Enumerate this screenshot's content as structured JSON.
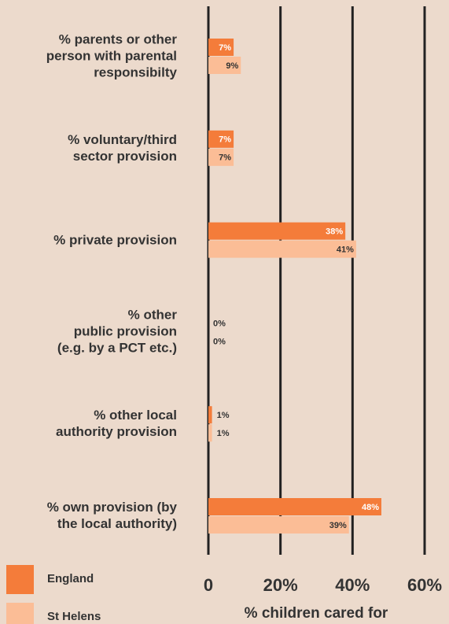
{
  "chart_data": {
    "type": "bar",
    "orientation": "horizontal",
    "categories": [
      "% parents or other\nperson with parental\nresponsibilty",
      "% voluntary/third\nsector provision",
      "% private provision",
      "% other\npublic provision\n(e.g. by a PCT etc.)",
      "% other local\nauthority provision",
      "% own provision (by\nthe local authority)"
    ],
    "series": [
      {
        "name": "England",
        "color": "#f47c3a",
        "values": [
          7,
          7,
          38,
          0,
          1,
          48
        ],
        "value_labels": [
          "7%",
          "7%",
          "38%",
          "0%",
          "1%",
          "48%"
        ]
      },
      {
        "name": "St Helens",
        "color": "#fbbd96",
        "values": [
          9,
          7,
          41,
          0,
          1,
          39
        ],
        "value_labels": [
          "9%",
          "7%",
          "41%",
          "0%",
          "1%",
          "39%"
        ]
      }
    ],
    "xlabel": "% children cared for",
    "xlim": [
      0,
      60
    ],
    "xticks": [
      0,
      {
        "value": 20,
        "label": "20%"
      },
      {
        "value": 40,
        "label": "40%"
      },
      {
        "value": 60,
        "label": "60%"
      }
    ],
    "grid": true,
    "legend": "bottom-left"
  }
}
